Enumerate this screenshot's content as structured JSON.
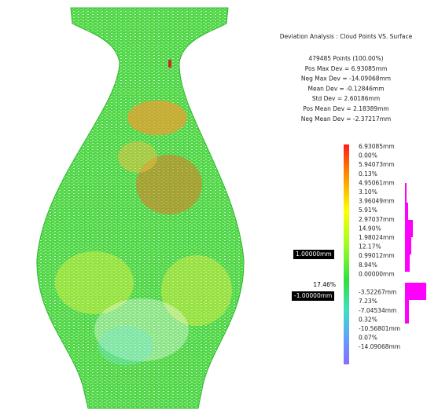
{
  "header": {
    "title": "Deviation Analysis : Cloud Points VS. Surface"
  },
  "stats": [
    "479485 Points (100.00%)",
    "Pos Max Dev = 6.93085mm",
    "Neg Max Dev = -14.09068mm",
    "Mean Dev = -0.12846mm",
    "Std Dev = 2.60186mm",
    "Pos Mean Dev = 2.18389mm",
    "Neg Mean Dev = -2.37217mm"
  ],
  "scale_labels": [
    "6.93085mm",
    "5.94073mm",
    "4.95061mm",
    "3.96049mm",
    "2.97037mm",
    "1.98024mm",
    "0.99012mm",
    "0.00000mm",
    "-3.52267mm",
    "-7.04534mm",
    "-10.56801mm",
    "-14.09068mm"
  ],
  "percentages": [
    "0.00%",
    "0.13%",
    "3.10%",
    "5.91%",
    "14.90%",
    "12.17%",
    "8.94%",
    "7.23%",
    "0.32%",
    "0.07%"
  ],
  "tolerance": {
    "upper": "1.00000mm",
    "within": "17.46%",
    "lower": "-1.00000mm"
  }
}
